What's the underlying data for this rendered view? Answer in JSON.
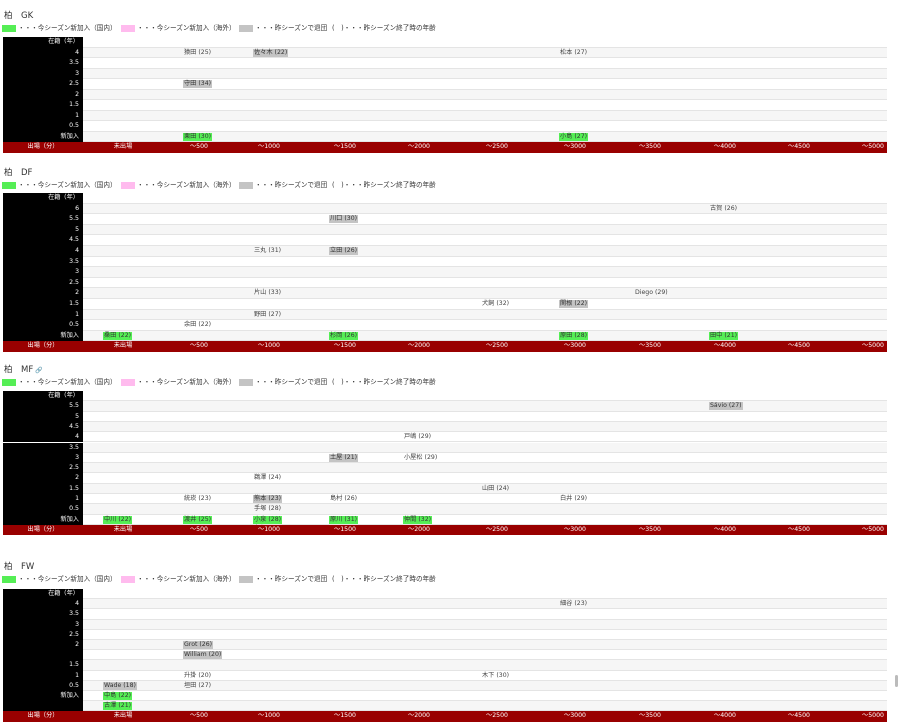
{
  "legend": {
    "domestic": "・・・今シーズン新加入（国内）",
    "overseas": "・・・今シーズン新加入（海外）",
    "left": "・・・昨シーズンで退団",
    "age": "(　)・・・昨シーズン終了時の年齢",
    "colors": {
      "domestic": "#55ee55",
      "overseas": "#ffbbee",
      "left": "#c4c4c4"
    }
  },
  "axis": {
    "name": "出場（分）",
    "ticks": [
      "未出場",
      "～500",
      "～1000",
      "～1500",
      "～2000",
      "～2500",
      "～3000",
      "～3500",
      "～4000",
      "～4500",
      "～5000"
    ]
  },
  "sections": [
    {
      "title": "柏　GK",
      "header": "在籍（年）",
      "rows": [
        "4",
        "3.5",
        "3",
        "2.5",
        "2",
        "1.5",
        "1",
        "0.5",
        "新加入"
      ],
      "players": [
        {
          "t": "猿田 (25)",
          "s": "",
          "r": 0,
          "b": 1,
          "o": 0
        },
        {
          "t": "佐々木 (22)",
          "s": "gone",
          "r": 0,
          "b": 2,
          "o": 0
        },
        {
          "t": "松本 (27)",
          "s": "",
          "r": 0,
          "b": 6,
          "o": 0
        },
        {
          "t": "守田 (34)",
          "s": "gone",
          "r": 3,
          "b": 1,
          "o": 0
        },
        {
          "t": "栗田 (30)",
          "s": "new",
          "r": 8,
          "b": 1,
          "o": 0
        },
        {
          "t": "小島 (27)",
          "s": "new",
          "r": 8,
          "b": 6,
          "o": 0
        }
      ]
    },
    {
      "title": "柏　DF",
      "header": "在籍（年）",
      "rows": [
        "6",
        "5.5",
        "5",
        "4.5",
        "4",
        "3.5",
        "3",
        "2.5",
        "2",
        "1.5",
        "1",
        "0.5",
        "新加入"
      ],
      "players": [
        {
          "t": "古賀 (26)",
          "s": "",
          "r": 0,
          "b": 8,
          "o": 0
        },
        {
          "t": "川口 (30)",
          "s": "gone",
          "r": 1,
          "b": 3,
          "o": 0
        },
        {
          "t": "三丸 (31)",
          "s": "",
          "r": 4,
          "b": 2,
          "o": 0
        },
        {
          "t": "立田 (26)",
          "s": "gone",
          "r": 4,
          "b": 3,
          "o": 0
        },
        {
          "t": "片山 (33)",
          "s": "",
          "r": 8,
          "b": 2,
          "o": 0
        },
        {
          "t": "Diego (29)",
          "s": "",
          "r": 8,
          "b": 7,
          "o": 0
        },
        {
          "t": "犬飼 (32)",
          "s": "",
          "r": 9,
          "b": 5,
          "o": 0
        },
        {
          "t": "関根 (22)",
          "s": "gone",
          "r": 9,
          "b": 6,
          "o": 0
        },
        {
          "t": "野田 (27)",
          "s": "",
          "r": 10,
          "b": 2,
          "o": 0
        },
        {
          "t": "余田 (22)",
          "s": "",
          "r": 11,
          "b": 1,
          "o": 0
        },
        {
          "t": "桑田 (22)",
          "s": "new",
          "r": 12,
          "b": 0,
          "o": 0
        },
        {
          "t": "杉岡 (26)",
          "s": "new",
          "r": 12,
          "b": 3,
          "o": 0
        },
        {
          "t": "原田 (28)",
          "s": "new",
          "r": 12,
          "b": 6,
          "o": 0
        },
        {
          "t": "田中 (21)",
          "s": "new",
          "r": 12,
          "b": 8,
          "o": 0
        }
      ]
    },
    {
      "title": "柏　MF",
      "header": "在籍（年）",
      "rows": [
        "5.5",
        "5",
        "4.5",
        "4",
        "3.5",
        "3",
        "2.5",
        "2",
        "1.5",
        "1",
        "0.5",
        "新加入"
      ],
      "players": [
        {
          "t": "Sávio (27)",
          "s": "gone",
          "r": 0,
          "b": 8,
          "o": 0
        },
        {
          "t": "戸嶋 (29)",
          "s": "",
          "r": 3,
          "b": 4,
          "o": 0
        },
        {
          "t": "土屋 (21)",
          "s": "gone",
          "r": 5,
          "b": 3,
          "o": 0
        },
        {
          "t": "小屋松 (29)",
          "s": "",
          "r": 5,
          "b": 4,
          "o": 0
        },
        {
          "t": "鵜澤 (24)",
          "s": "",
          "r": 7,
          "b": 2,
          "o": 0
        },
        {
          "t": "山田 (24)",
          "s": "",
          "r": 8,
          "b": 5,
          "o": 0
        },
        {
          "t": "統崁 (23)",
          "s": "",
          "r": 9,
          "b": 1,
          "o": 0
        },
        {
          "t": "熊本 (23)",
          "s": "gone",
          "r": 9,
          "b": 2,
          "o": 0
        },
        {
          "t": "島村 (26)",
          "s": "",
          "r": 9,
          "b": 3,
          "o": 0
        },
        {
          "t": "白井 (29)",
          "s": "",
          "r": 9,
          "b": 6,
          "o": 0
        },
        {
          "t": "手塚 (28)",
          "s": "",
          "r": 10,
          "b": 2,
          "o": 0
        },
        {
          "t": "中川 (22)",
          "s": "new",
          "r": 11,
          "b": 0,
          "o": 0
        },
        {
          "t": "渡井 (25)",
          "s": "new",
          "r": 11,
          "b": 1,
          "o": 0
        },
        {
          "t": "小泉 (28)",
          "s": "new",
          "r": 11,
          "b": 2,
          "o": 0
        },
        {
          "t": "久保 (25)",
          "s": "new",
          "r": 11,
          "b": 2,
          "o": 1
        },
        {
          "t": "原川 (31)",
          "s": "new",
          "r": 11,
          "b": 3,
          "o": 0
        },
        {
          "t": "仲間 (32)",
          "s": "new",
          "r": 11,
          "b": 4,
          "o": 0
        }
      ]
    },
    {
      "title": "柏　FW",
      "header": "在籍（年）",
      "rows": [
        "4",
        "3.5",
        "3",
        "2.5",
        "2",
        "",
        "1.5",
        "1",
        "0.5",
        "新加入",
        ""
      ],
      "players": [
        {
          "t": "細谷 (23)",
          "s": "",
          "r": 0,
          "b": 6,
          "o": 0
        },
        {
          "t": "Grot (26)",
          "s": "gone",
          "r": 4,
          "b": 1,
          "o": 0
        },
        {
          "t": "William (20)",
          "s": "gone",
          "r": 5,
          "b": 1,
          "o": 0
        },
        {
          "t": "升掛 (20)",
          "s": "",
          "r": 7,
          "b": 1,
          "o": 0
        },
        {
          "t": "木下 (30)",
          "s": "",
          "r": 7,
          "b": 5,
          "o": 0
        },
        {
          "t": "Wade (18)",
          "s": "gone",
          "r": 8,
          "b": 0,
          "o": 0
        },
        {
          "t": "垣田 (27)",
          "s": "",
          "r": 8,
          "b": 1,
          "o": 0
        },
        {
          "t": "中島 (22)",
          "s": "new",
          "r": 9,
          "b": 0,
          "o": 0
        },
        {
          "t": "古澤 (21)",
          "s": "new",
          "r": 10,
          "b": 0,
          "o": 0
        }
      ]
    }
  ]
}
